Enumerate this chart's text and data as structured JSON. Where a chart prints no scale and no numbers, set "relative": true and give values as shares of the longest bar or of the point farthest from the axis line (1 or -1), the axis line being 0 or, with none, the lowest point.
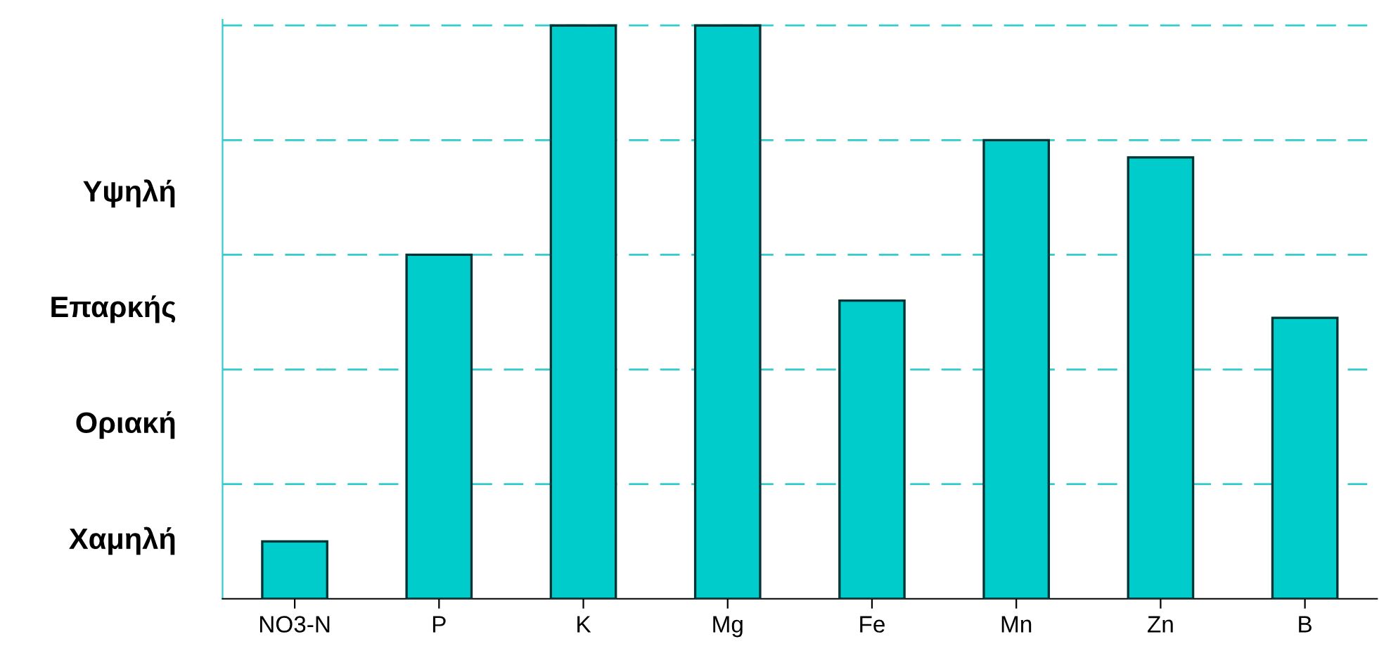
{
  "chart_data": {
    "type": "bar",
    "categories": [
      "NO3-N",
      "P",
      "K",
      "Mg",
      "Fe",
      "Mn",
      "Zn",
      "B"
    ],
    "values": [
      0.1,
      0.6,
      1,
      1,
      0.52,
      0.8,
      0.77,
      0.49
    ],
    "relative": true,
    "color": "#00cccc",
    "annotations": [
      "Χαμηλή",
      "Οριακή",
      "Επαρκής",
      "Υψηλή"
    ],
    "ref_lines": [
      {
        "axis": "y",
        "value": 0.2,
        "color": "#33cccc",
        "line_style": "dashed"
      },
      {
        "axis": "y",
        "value": 0.4,
        "color": "#33cccc",
        "line_style": "dashed"
      },
      {
        "axis": "y",
        "value": 0.6,
        "color": "#33cccc",
        "line_style": "dashed"
      },
      {
        "axis": "y",
        "value": 0.8,
        "color": "#33cccc",
        "line_style": "dashed"
      },
      {
        "axis": "y",
        "value": 1.0,
        "color": "#33cccc",
        "line_style": "dashed"
      }
    ],
    "legend": false
  }
}
